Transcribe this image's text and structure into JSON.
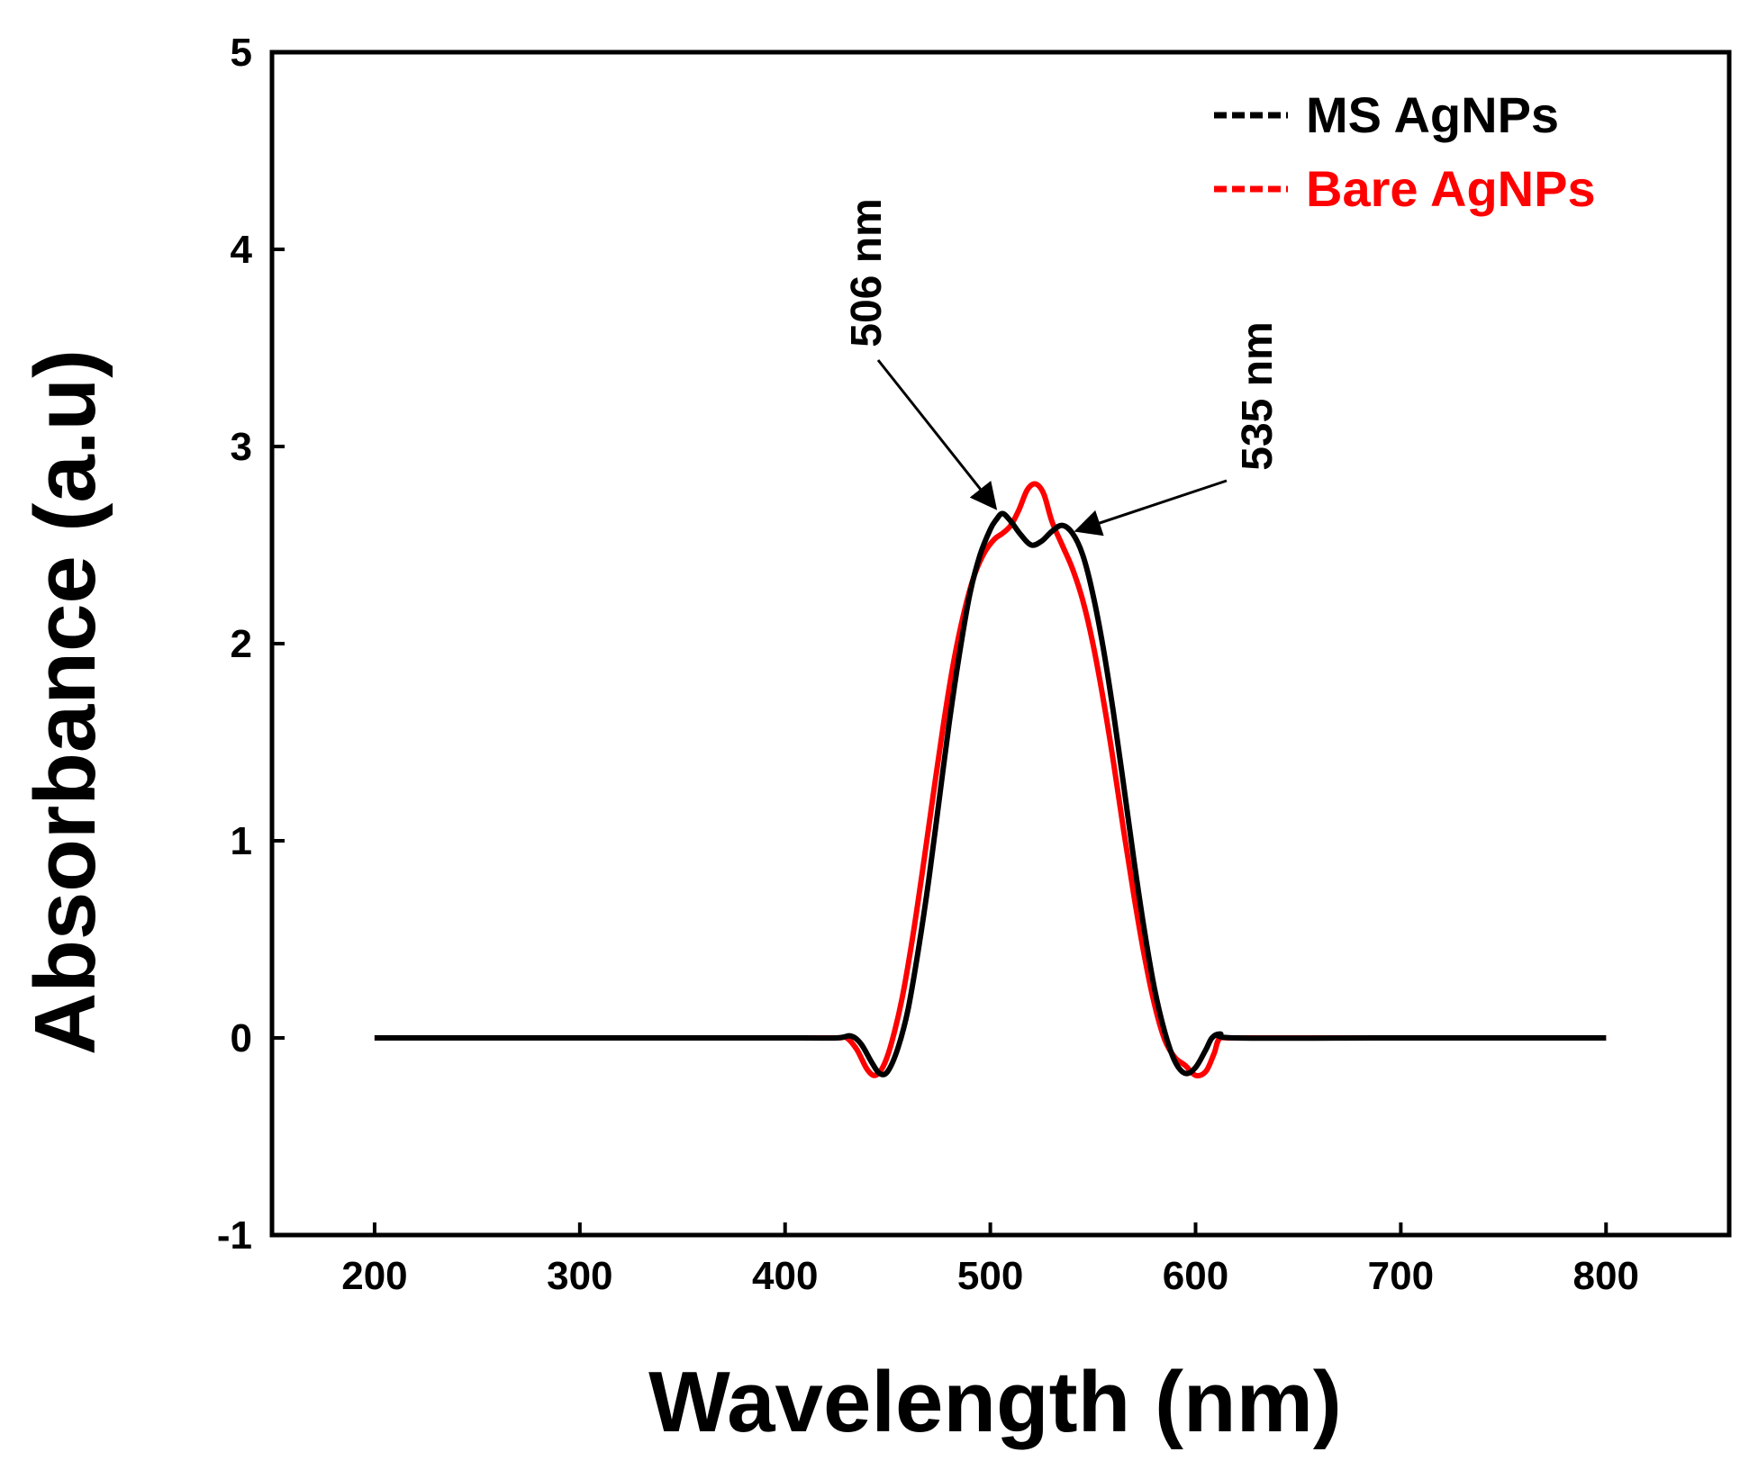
{
  "chart_data": {
    "type": "line",
    "title": "",
    "xlabel": "Wavelength (nm)",
    "ylabel": "Absorbance (a.u)",
    "xlim": [
      150,
      860
    ],
    "ylim": [
      -1,
      5
    ],
    "xticks": [
      200,
      300,
      400,
      500,
      600,
      700,
      800
    ],
    "xtick_labels": [
      "200",
      "300",
      "400",
      "500",
      "600",
      "700",
      "800"
    ],
    "yticks": [
      -1,
      0,
      1,
      2,
      3,
      4,
      5
    ],
    "ytick_labels": [
      "-1",
      "0",
      "1",
      "2",
      "3",
      "4",
      "5"
    ],
    "grid": false,
    "legend_position": "top-right",
    "series": [
      {
        "name": "MS AgNPs",
        "color": "#000000",
        "points": [
          [
            200,
            0
          ],
          [
            300,
            0
          ],
          [
            400,
            0
          ],
          [
            425,
            0
          ],
          [
            432,
            0.01
          ],
          [
            437,
            -0.03
          ],
          [
            442,
            -0.12
          ],
          [
            446,
            -0.18
          ],
          [
            450,
            -0.17
          ],
          [
            455,
            -0.05
          ],
          [
            460,
            0.15
          ],
          [
            465,
            0.45
          ],
          [
            470,
            0.8
          ],
          [
            475,
            1.2
          ],
          [
            480,
            1.6
          ],
          [
            485,
            1.95
          ],
          [
            490,
            2.25
          ],
          [
            495,
            2.45
          ],
          [
            500,
            2.58
          ],
          [
            503,
            2.63
          ],
          [
            506,
            2.66
          ],
          [
            510,
            2.62
          ],
          [
            515,
            2.55
          ],
          [
            520,
            2.5
          ],
          [
            525,
            2.52
          ],
          [
            530,
            2.57
          ],
          [
            535,
            2.6
          ],
          [
            540,
            2.56
          ],
          [
            545,
            2.45
          ],
          [
            550,
            2.25
          ],
          [
            555,
            1.98
          ],
          [
            560,
            1.65
          ],
          [
            565,
            1.28
          ],
          [
            570,
            0.9
          ],
          [
            575,
            0.55
          ],
          [
            580,
            0.25
          ],
          [
            585,
            0.03
          ],
          [
            590,
            -0.12
          ],
          [
            595,
            -0.18
          ],
          [
            600,
            -0.15
          ],
          [
            605,
            -0.06
          ],
          [
            608,
            0.0
          ],
          [
            612,
            0.02
          ],
          [
            620,
            0
          ],
          [
            700,
            0
          ],
          [
            800,
            0
          ]
        ]
      },
      {
        "name": "Bare AgNPs",
        "color": "#ff0000",
        "points": [
          [
            200,
            0
          ],
          [
            300,
            0
          ],
          [
            400,
            0
          ],
          [
            425,
            0
          ],
          [
            430,
            0.0
          ],
          [
            435,
            -0.06
          ],
          [
            440,
            -0.16
          ],
          [
            444,
            -0.19
          ],
          [
            448,
            -0.14
          ],
          [
            452,
            -0.02
          ],
          [
            457,
            0.2
          ],
          [
            462,
            0.5
          ],
          [
            467,
            0.85
          ],
          [
            472,
            1.22
          ],
          [
            477,
            1.58
          ],
          [
            482,
            1.9
          ],
          [
            487,
            2.15
          ],
          [
            492,
            2.34
          ],
          [
            497,
            2.46
          ],
          [
            502,
            2.53
          ],
          [
            506,
            2.56
          ],
          [
            510,
            2.6
          ],
          [
            514,
            2.68
          ],
          [
            518,
            2.78
          ],
          [
            522,
            2.81
          ],
          [
            526,
            2.76
          ],
          [
            530,
            2.62
          ],
          [
            535,
            2.5
          ],
          [
            540,
            2.38
          ],
          [
            545,
            2.22
          ],
          [
            550,
            2.0
          ],
          [
            555,
            1.72
          ],
          [
            560,
            1.4
          ],
          [
            565,
            1.05
          ],
          [
            570,
            0.72
          ],
          [
            575,
            0.42
          ],
          [
            580,
            0.17
          ],
          [
            585,
            -0.01
          ],
          [
            590,
            -0.1
          ],
          [
            595,
            -0.14
          ],
          [
            600,
            -0.19
          ],
          [
            605,
            -0.17
          ],
          [
            609,
            -0.08
          ],
          [
            612,
            0.0
          ],
          [
            620,
            0
          ],
          [
            700,
            0
          ],
          [
            800,
            0
          ]
        ]
      }
    ],
    "annotations": [
      {
        "text": "506 nm",
        "x": 506,
        "y": 2.66
      },
      {
        "text": "535 nm",
        "x": 535,
        "y": 2.6
      }
    ]
  }
}
